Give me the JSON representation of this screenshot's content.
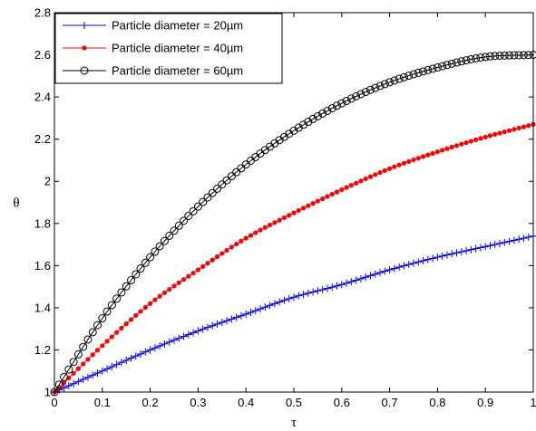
{
  "chart_data": {
    "type": "line",
    "xlabel": "τ",
    "ylabel": "θ",
    "xlim": [
      0,
      1
    ],
    "ylim": [
      1,
      2.8
    ],
    "xticks": [
      "0",
      "0.1",
      "0.2",
      "0.3",
      "0.4",
      "0.5",
      "0.6",
      "0.7",
      "0.8",
      "0.9",
      "1"
    ],
    "yticks": [
      "1",
      "1.2",
      "1.4",
      "1.6",
      "1.8",
      "2",
      "2.2",
      "2.4",
      "2.6",
      "2.8"
    ],
    "grid": false,
    "legend_position": "top-left",
    "x": [
      0,
      0.1,
      0.2,
      0.3,
      0.4,
      0.5,
      0.6,
      0.7,
      0.8,
      0.9,
      1.0
    ],
    "series": [
      {
        "name": "Particle diameter = 20µm",
        "color": "#0000ff",
        "marker": "plus",
        "values": [
          1.0,
          1.1,
          1.2,
          1.29,
          1.37,
          1.45,
          1.51,
          1.58,
          1.64,
          1.69,
          1.74
        ]
      },
      {
        "name": "Particle diameter = 40µm",
        "color": "#ff0000",
        "marker": "dot",
        "values": [
          1.0,
          1.22,
          1.42,
          1.58,
          1.73,
          1.85,
          1.96,
          2.06,
          2.14,
          2.21,
          2.27
        ]
      },
      {
        "name": "Particle diameter = 60µm",
        "color": "#000000",
        "marker": "circle",
        "values": [
          1.0,
          1.35,
          1.64,
          1.88,
          2.08,
          2.24,
          2.37,
          2.47,
          2.54,
          2.59,
          2.6
        ]
      }
    ]
  }
}
